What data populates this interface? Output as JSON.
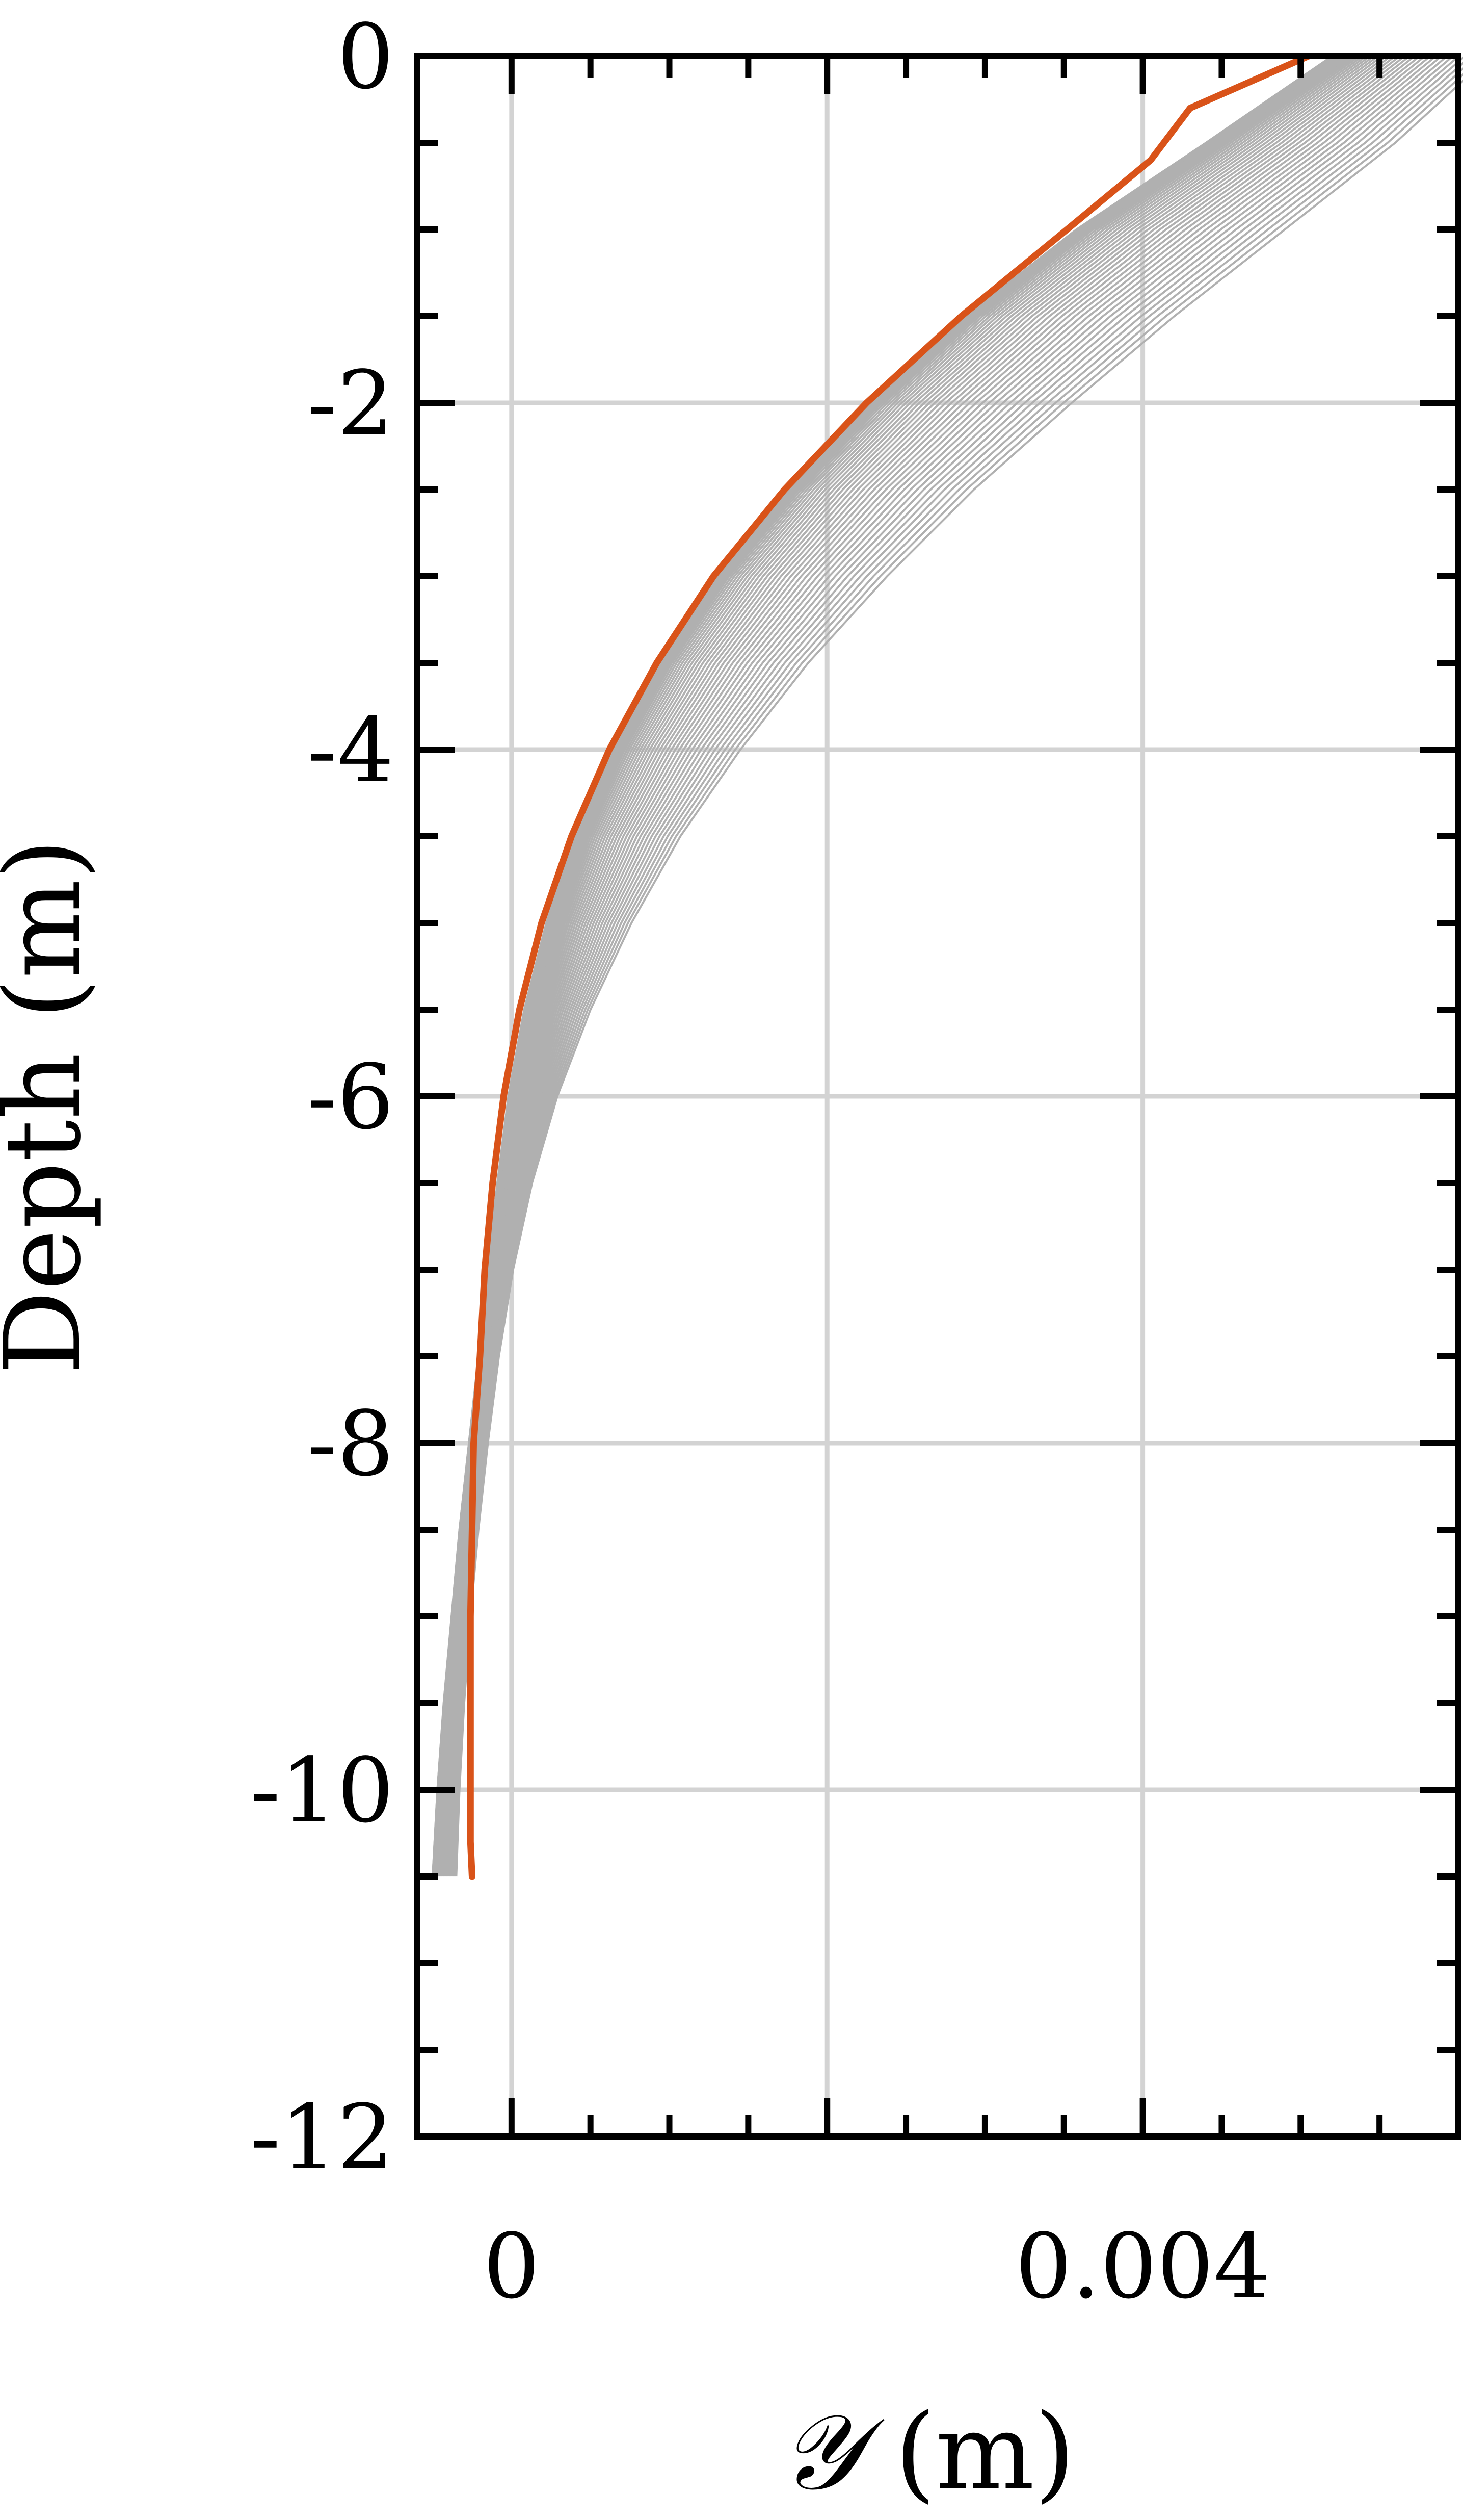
{
  "chart_data": {
    "type": "line",
    "xlabel_symbol": "𝒴",
    "xlabel_unit": " (m)",
    "ylabel": "Depth (m)",
    "xlim": [
      -0.0006,
      0.006
    ],
    "ylim": [
      -12,
      0
    ],
    "x_ticks": [
      {
        "value": 0,
        "label": "0"
      },
      {
        "value": 0.004,
        "label": "0.004"
      }
    ],
    "y_ticks": [
      {
        "value": 0,
        "label": "0"
      },
      {
        "value": -2,
        "label": "-2"
      },
      {
        "value": -4,
        "label": "-4"
      },
      {
        "value": -6,
        "label": "-6"
      },
      {
        "value": -8,
        "label": "-8"
      },
      {
        "value": -10,
        "label": "-10"
      },
      {
        "value": -12,
        "label": "-12"
      }
    ],
    "x_minor_step": 0.0005,
    "y_minor_step": 0.5,
    "grid": true,
    "grid_x": [
      0,
      0.002,
      0.004,
      0.006
    ],
    "grid_y": [
      -2,
      -4,
      -6,
      -8,
      -10
    ],
    "colors": {
      "highlight": "#D95319",
      "ensemble": "#B0B0B0",
      "grid": "#D3D3D3",
      "axis": "#000000"
    },
    "highlight_series": {
      "depth": [
        0,
        -0.3,
        -0.6,
        -1.0,
        -1.5,
        -2.0,
        -2.5,
        -3.0,
        -3.5,
        -4.0,
        -4.5,
        -5.0,
        -5.5,
        -6.0,
        -6.5,
        -7.0,
        -7.5,
        -8.0,
        -8.5,
        -9.0,
        -9.5,
        -10.0,
        -10.3,
        -10.5
      ],
      "values": [
        0.00505,
        0.0043,
        0.00405,
        0.00352,
        0.00285,
        0.00225,
        0.00173,
        0.00128,
        0.00092,
        0.00062,
        0.00038,
        0.00019,
        5e-05,
        -5e-05,
        -0.00012,
        -0.00017,
        -0.0002,
        -0.00024,
        -0.00025,
        -0.00026,
        -0.00026,
        -0.00026,
        -0.00026,
        -0.00025
      ]
    },
    "ensemble_series": {
      "depth": [
        0,
        -0.5,
        -1.0,
        -1.5,
        -2.0,
        -2.5,
        -3.0,
        -3.5,
        -4.0,
        -4.5,
        -5.0,
        -5.5,
        -6.0,
        -6.5,
        -7.0,
        -7.5,
        -8.0,
        -8.5,
        -9.0,
        -9.5,
        -10.0,
        -10.5
      ],
      "lower": [
        0.0052,
        0.0044,
        0.00358,
        0.00288,
        0.00228,
        0.00176,
        0.00131,
        0.00094,
        0.00064,
        0.0004,
        0.00022,
        8e-05,
        -2e-05,
        -9e-05,
        -0.00015,
        -0.00021,
        -0.00027,
        -0.00033,
        -0.00038,
        -0.00043,
        -0.00047,
        -0.0005
      ],
      "upper": [
        0.0062,
        0.0056,
        0.0049,
        0.0042,
        0.00355,
        0.00293,
        0.00238,
        0.00188,
        0.00145,
        0.00107,
        0.00076,
        0.0005,
        0.00029,
        0.00013,
        1e-05,
        -8e-05,
        -0.00015,
        -0.00021,
        -0.00026,
        -0.0003,
        -0.00033,
        -0.00035
      ],
      "count": 40
    }
  }
}
